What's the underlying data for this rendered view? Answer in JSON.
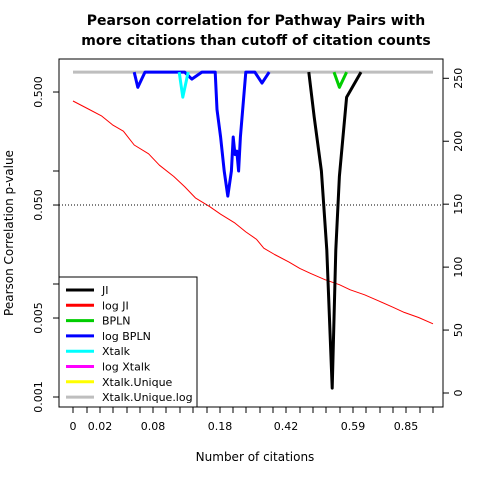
{
  "chart_data": {
    "type": "line",
    "title_line1": "Pearson correlation for Pathway Pairs with",
    "title_line2": "more citations than cutoff of citation counts",
    "xlabel": "Number of citations",
    "ylabel": "Pearson Correlation p-value",
    "x_ticks": [
      "0",
      "0.02",
      "0.08",
      "0.18",
      "0.42",
      "0.59",
      "0.85"
    ],
    "y_left_ticks": [
      "0.001",
      "0.005",
      "0.050",
      "0.500"
    ],
    "y_left_scale": "log",
    "y_left_lim": [
      0.001,
      1.0
    ],
    "y_right_ticks": [
      "0",
      "50",
      "100",
      "150",
      "200",
      "250"
    ],
    "y_right_lim": [
      0,
      255
    ],
    "reference_line": {
      "value": 0.05,
      "style": "dotted"
    },
    "legend": {
      "position": "bottom-left",
      "entries": [
        {
          "label": "JI",
          "color": "#000000"
        },
        {
          "label": "log JI",
          "color": "#ff0000"
        },
        {
          "label": "BPLN",
          "color": "#00cd00"
        },
        {
          "label": "log BPLN",
          "color": "#0000ff"
        },
        {
          "label": "Xtalk",
          "color": "#00ffff"
        },
        {
          "label": "log Xtalk",
          "color": "#ff00ff"
        },
        {
          "label": "Xtalk.Unique",
          "color": "#ffff00"
        },
        {
          "label": "Xtalk.Unique.log",
          "color": "#bebebe"
        }
      ]
    },
    "series": [
      {
        "name": "JI",
        "axis": "left",
        "color": "#000000",
        "points": [
          [
            0.8,
            0.75
          ],
          [
            0.76,
            0.45
          ],
          [
            0.74,
            0.09
          ],
          [
            0.73,
            0.02
          ],
          [
            0.72,
            0.0012
          ],
          [
            0.705,
            0.02
          ],
          [
            0.69,
            0.1
          ],
          [
            0.67,
            0.3
          ],
          [
            0.655,
            0.75
          ]
        ]
      },
      {
        "name": "log JI",
        "axis": "right",
        "color": "#ff0000",
        "points": [
          [
            0,
            232
          ],
          [
            0.04,
            226
          ],
          [
            0.08,
            220
          ],
          [
            0.11,
            213
          ],
          [
            0.14,
            208
          ],
          [
            0.17,
            197
          ],
          [
            0.21,
            190
          ],
          [
            0.24,
            181
          ],
          [
            0.28,
            172
          ],
          [
            0.31,
            164
          ],
          [
            0.34,
            155
          ],
          [
            0.38,
            148
          ],
          [
            0.41,
            142
          ],
          [
            0.45,
            135
          ],
          [
            0.48,
            128
          ],
          [
            0.51,
            122
          ],
          [
            0.53,
            115
          ],
          [
            0.56,
            110
          ],
          [
            0.6,
            104
          ],
          [
            0.63,
            99
          ],
          [
            0.66,
            95
          ],
          [
            0.7,
            90
          ],
          [
            0.74,
            86
          ],
          [
            0.77,
            82
          ],
          [
            0.81,
            78
          ],
          [
            0.85,
            73
          ],
          [
            0.89,
            68
          ],
          [
            0.92,
            64
          ],
          [
            0.96,
            60
          ],
          [
            1.0,
            55
          ]
        ]
      },
      {
        "name": "BPLN",
        "axis": "left",
        "color": "#00cd00",
        "points": [
          [
            0.76,
            0.75
          ],
          [
            0.74,
            0.55
          ],
          [
            0.725,
            0.75
          ]
        ]
      },
      {
        "name": "log BPLN",
        "axis": "left",
        "color": "#0000ff",
        "points": [
          [
            0.545,
            0.75
          ],
          [
            0.525,
            0.6
          ],
          [
            0.505,
            0.75
          ],
          [
            0.48,
            0.75
          ],
          [
            0.465,
            0.2
          ],
          [
            0.46,
            0.1
          ],
          [
            0.455,
            0.15
          ],
          [
            0.45,
            0.14
          ],
          [
            0.445,
            0.2
          ],
          [
            0.44,
            0.1
          ],
          [
            0.43,
            0.06
          ],
          [
            0.42,
            0.1
          ],
          [
            0.41,
            0.2
          ],
          [
            0.4,
            0.35
          ],
          [
            0.395,
            0.75
          ],
          [
            0.358,
            0.75
          ],
          [
            0.33,
            0.65
          ],
          [
            0.31,
            0.75
          ],
          [
            0.2,
            0.75
          ],
          [
            0.18,
            0.55
          ],
          [
            0.17,
            0.75
          ]
        ]
      },
      {
        "name": "Xtalk",
        "axis": "left",
        "color": "#00ffff",
        "points": [
          [
            0.32,
            0.75
          ],
          [
            0.305,
            0.45
          ],
          [
            0.295,
            0.75
          ]
        ]
      },
      {
        "name": "log Xtalk",
        "axis": "left",
        "color": "#ff00ff",
        "points": []
      },
      {
        "name": "Xtalk.Unique",
        "axis": "left",
        "color": "#ffff00",
        "points": []
      },
      {
        "name": "Xtalk.Unique.log",
        "axis": "left",
        "color": "#bebebe",
        "points": [
          [
            0,
            0.75
          ],
          [
            1.0,
            0.75
          ]
        ]
      }
    ]
  }
}
